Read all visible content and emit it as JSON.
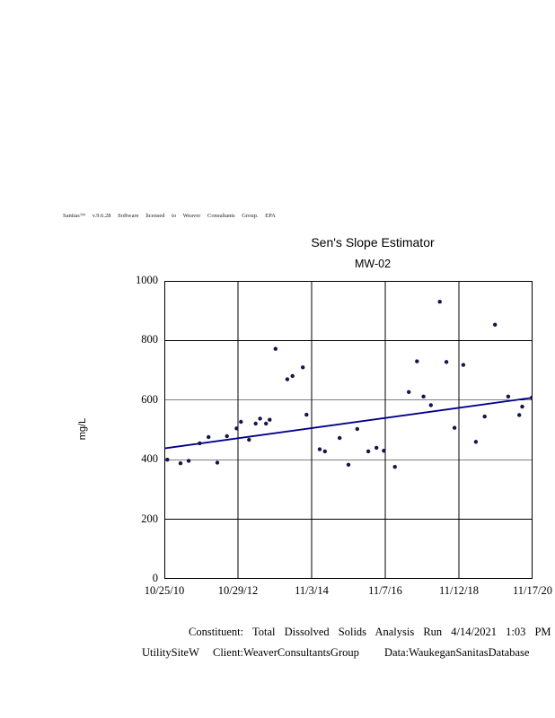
{
  "header": {
    "sanitas_line": "Sanitas™ v.9.6.28 Software licensed to Weaver Consultants Group. EPA"
  },
  "chart": {
    "title": "Sen's Slope Estimator",
    "subtitle": "MW-02",
    "ylabel": "mg/L"
  },
  "chart_data": {
    "type": "scatter",
    "title": "Sen's Slope Estimator",
    "subtitle": "MW-02",
    "xlabel": "",
    "ylabel": "mg/L",
    "ylim": [
      0,
      1000
    ],
    "y_ticks": [
      0,
      200,
      400,
      600,
      800,
      1000
    ],
    "x_ticks": [
      "10/25/10",
      "10/29/12",
      "11/3/14",
      "11/7/16",
      "11/12/18",
      "11/17/20"
    ],
    "grid": true,
    "legend": "none",
    "points": [
      {
        "x": 0.04,
        "y": 400
      },
      {
        "x": 0.22,
        "y": 388
      },
      {
        "x": 0.33,
        "y": 396
      },
      {
        "x": 0.48,
        "y": 455
      },
      {
        "x": 0.6,
        "y": 476
      },
      {
        "x": 0.72,
        "y": 390
      },
      {
        "x": 0.85,
        "y": 479
      },
      {
        "x": 0.98,
        "y": 505
      },
      {
        "x": 1.04,
        "y": 527
      },
      {
        "x": 1.15,
        "y": 467
      },
      {
        "x": 1.24,
        "y": 521
      },
      {
        "x": 1.3,
        "y": 538
      },
      {
        "x": 1.38,
        "y": 521
      },
      {
        "x": 1.43,
        "y": 534
      },
      {
        "x": 1.51,
        "y": 772
      },
      {
        "x": 1.67,
        "y": 670
      },
      {
        "x": 1.74,
        "y": 681
      },
      {
        "x": 1.88,
        "y": 710
      },
      {
        "x": 1.93,
        "y": 551
      },
      {
        "x": 2.11,
        "y": 435
      },
      {
        "x": 2.18,
        "y": 428
      },
      {
        "x": 2.38,
        "y": 473
      },
      {
        "x": 2.5,
        "y": 383
      },
      {
        "x": 2.62,
        "y": 503
      },
      {
        "x": 2.77,
        "y": 428
      },
      {
        "x": 2.88,
        "y": 440
      },
      {
        "x": 2.98,
        "y": 430
      },
      {
        "x": 3.13,
        "y": 376
      },
      {
        "x": 3.32,
        "y": 627
      },
      {
        "x": 3.43,
        "y": 730
      },
      {
        "x": 3.52,
        "y": 612
      },
      {
        "x": 3.62,
        "y": 583
      },
      {
        "x": 3.74,
        "y": 930
      },
      {
        "x": 3.83,
        "y": 728
      },
      {
        "x": 3.94,
        "y": 507
      },
      {
        "x": 4.06,
        "y": 718
      },
      {
        "x": 4.23,
        "y": 460
      },
      {
        "x": 4.35,
        "y": 545
      },
      {
        "x": 4.49,
        "y": 853
      },
      {
        "x": 4.67,
        "y": 612
      },
      {
        "x": 4.82,
        "y": 550
      },
      {
        "x": 4.86,
        "y": 578
      },
      {
        "x": 4.99,
        "y": 608
      }
    ],
    "trend_line": {
      "x1": 0,
      "y1": 438,
      "x2": 5,
      "y2": 608
    },
    "colors": {
      "point": "#15154a",
      "trend": "#00008b",
      "grid": "#000000",
      "border": "#000000"
    }
  },
  "footer": {
    "line1": "Constituent: Total Dissolved Solids Analysis Run 4/14/2021 1:03 PM",
    "line2_site": "UtilitySiteW",
    "line2_client": "Client:WeaverConsultantsGroup",
    "line2_data": "Data:WaukeganSanitasDatabase"
  }
}
